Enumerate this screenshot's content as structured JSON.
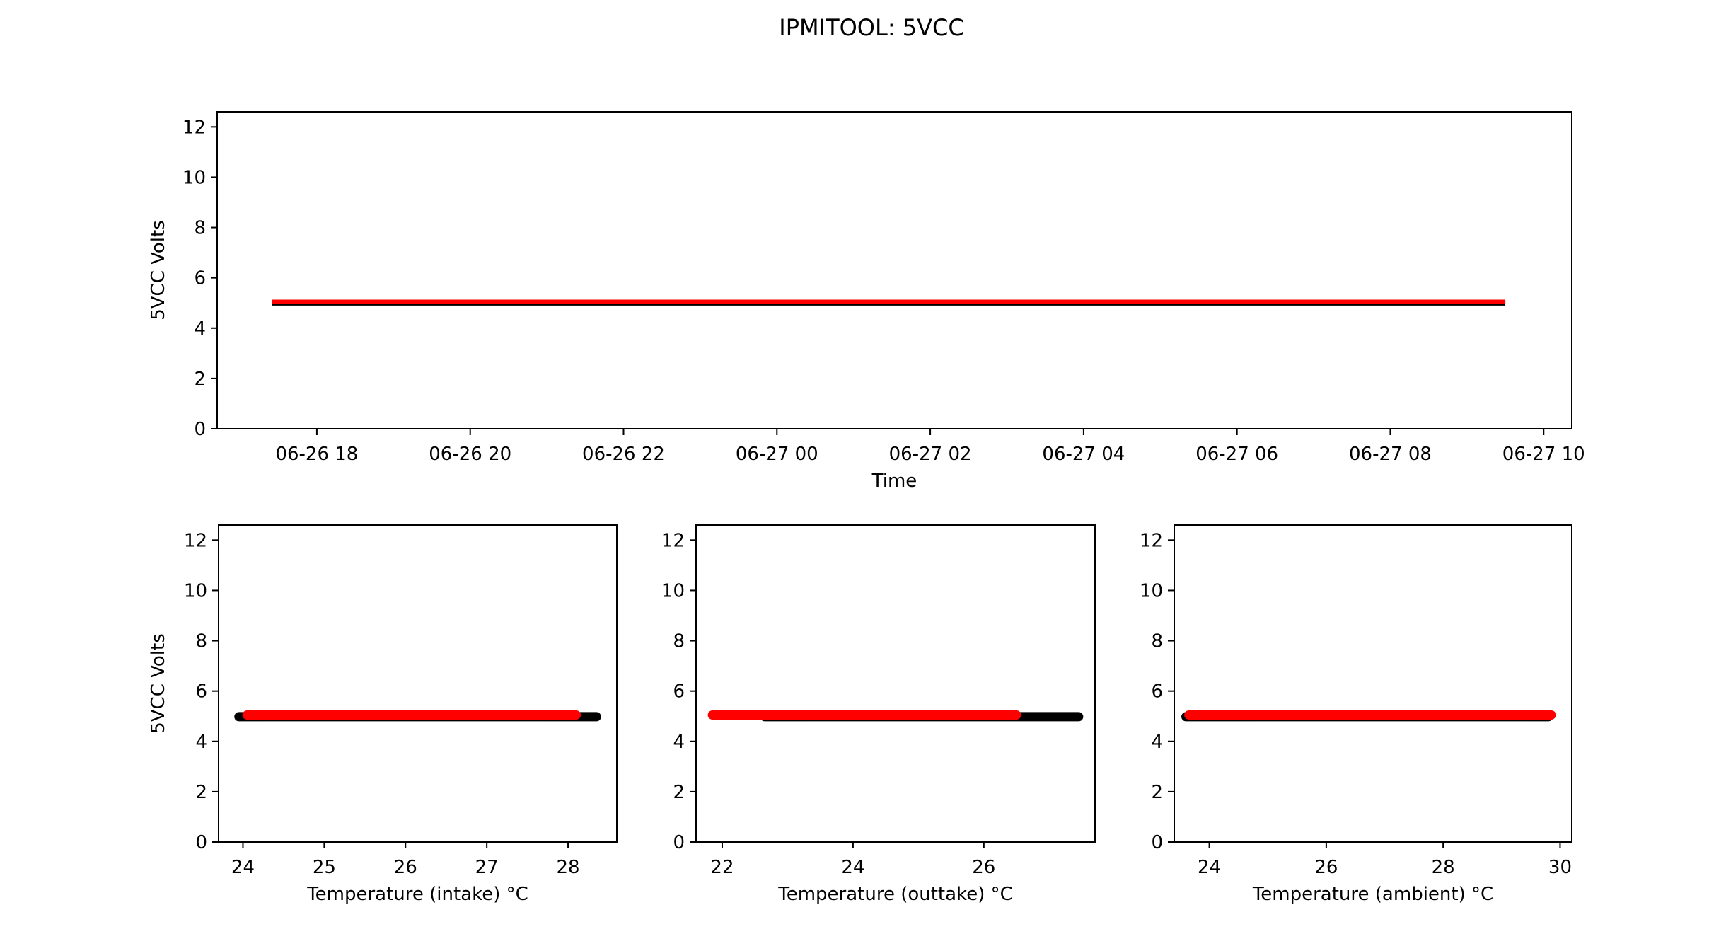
{
  "title": "IPMITOOL: 5VCC",
  "colors": {
    "series_a": "#000000",
    "series_b": "#ff0000"
  },
  "chart_data": [
    {
      "type": "line",
      "xlabel": "Time",
      "ylabel": "5VCC Volts",
      "xlim": [
        "2019-06-26 16:42",
        "2019-06-27 10:22"
      ],
      "ylim": [
        0,
        12.6
      ],
      "xticks": [
        "06-26 18",
        "06-26 20",
        "06-26 22",
        "06-27 00",
        "06-27 02",
        "06-27 04",
        "06-27 06",
        "06-27 08",
        "06-27 10"
      ],
      "yticks": [
        0,
        2,
        4,
        6,
        8,
        10,
        12
      ],
      "series": [
        {
          "color": "black",
          "x": [
            "2019-06-26 17:25",
            "2019-06-27 09:30"
          ],
          "values": [
            4.98,
            4.98
          ]
        },
        {
          "color": "red",
          "x": [
            "2019-06-26 17:25",
            "2019-06-27 09:30"
          ],
          "values": [
            5.05,
            5.05
          ]
        }
      ]
    },
    {
      "type": "scatter",
      "xlabel": "Temperature (intake) °C",
      "ylabel": "5VCC Volts",
      "xlim": [
        23.7,
        28.6
      ],
      "ylim": [
        0,
        12.6
      ],
      "xticks": [
        24,
        25,
        26,
        27,
        28
      ],
      "yticks": [
        0,
        2,
        4,
        6,
        8,
        10,
        12
      ],
      "series": [
        {
          "color": "black",
          "x_range": [
            23.95,
            28.35
          ],
          "values": [
            4.98
          ]
        },
        {
          "color": "red",
          "x_range": [
            24.05,
            28.1
          ],
          "values": [
            5.05
          ]
        }
      ]
    },
    {
      "type": "scatter",
      "xlabel": "Temperature (outtake) °C",
      "ylabel": "",
      "xlim": [
        21.6,
        27.7
      ],
      "ylim": [
        0,
        12.6
      ],
      "xticks": [
        22,
        24,
        26
      ],
      "yticks": [
        0,
        2,
        4,
        6,
        8,
        10,
        12
      ],
      "series": [
        {
          "color": "black",
          "x_range": [
            22.65,
            27.45
          ],
          "values": [
            4.98
          ]
        },
        {
          "color": "red",
          "x_range": [
            21.85,
            26.5
          ],
          "values": [
            5.05
          ]
        }
      ]
    },
    {
      "type": "scatter",
      "xlabel": "Temperature (ambient) °C",
      "ylabel": "",
      "xlim": [
        23.4,
        30.2
      ],
      "ylim": [
        0,
        12.6
      ],
      "xticks": [
        24,
        26,
        28,
        30
      ],
      "yticks": [
        0,
        2,
        4,
        6,
        8,
        10,
        12
      ],
      "series": [
        {
          "color": "black",
          "x_range": [
            23.6,
            29.8
          ],
          "values": [
            4.98
          ]
        },
        {
          "color": "red",
          "x_range": [
            23.65,
            29.85
          ],
          "values": [
            5.05
          ]
        }
      ]
    }
  ]
}
